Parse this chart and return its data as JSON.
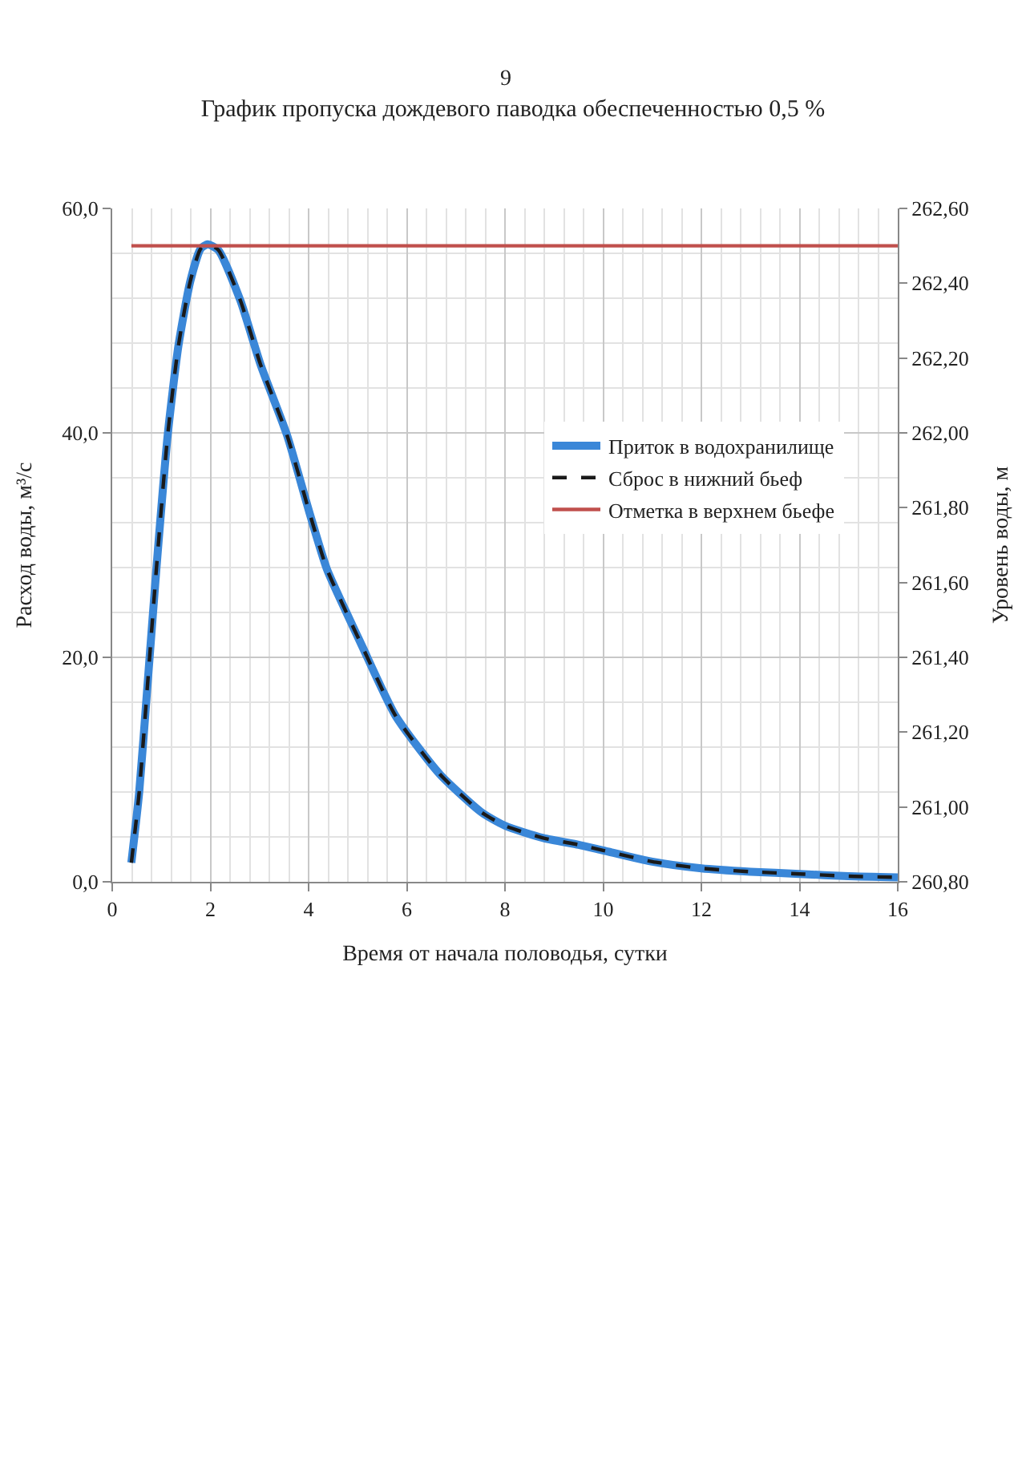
{
  "chart_data": {
    "type": "line",
    "title": "График пропуска дождевого паводка обеспеченностью 0,5 %",
    "xlabel": "Время от начала половодья, сутки",
    "ylabel": "Расход воды, м³/с",
    "y2label": "Уровень воды, м",
    "annotations": [
      "9"
    ],
    "x": [
      0.39,
      0.55,
      0.72,
      0.9,
      1.13,
      1.35,
      1.59,
      1.8,
      1.94,
      2.16,
      2.61,
      3.02,
      3.56,
      4.01,
      4.37,
      4.78,
      5.09,
      5.77,
      6.67,
      7.52,
      8.0,
      8.78,
      9.5,
      10.0,
      11.0,
      12.0,
      13.0,
      14.0,
      15.0,
      16.0
    ],
    "series": [
      {
        "name": "Приток в водохранилище",
        "color": "#3a87d8",
        "line_style": "solid",
        "values": [
          1.7,
          8.0,
          17.6,
          27.9,
          39.8,
          47.8,
          53.5,
          56.4,
          56.8,
          56.3,
          51.8,
          46.1,
          39.8,
          33.0,
          27.9,
          23.9,
          21.0,
          14.8,
          9.6,
          6.2,
          5.0,
          3.9,
          3.3,
          2.8,
          1.8,
          1.2,
          0.9,
          0.7,
          0.5,
          0.4
        ]
      },
      {
        "name": "Сброс в нижний бьеф",
        "color": "#1a1a1a",
        "line_style": "dashed",
        "values": [
          1.7,
          8.0,
          17.6,
          27.9,
          39.8,
          47.8,
          53.5,
          56.4,
          56.8,
          56.3,
          51.8,
          46.1,
          39.8,
          33.0,
          27.9,
          23.9,
          21.0,
          14.8,
          9.6,
          6.2,
          5.0,
          3.9,
          3.3,
          2.8,
          1.8,
          1.2,
          0.9,
          0.7,
          0.5,
          0.4
        ]
      },
      {
        "name": "Отметка в верхнем бьефе",
        "color": "#c0504d",
        "line_style": "solid",
        "axis": "y2",
        "x": [
          0.39,
          16.0
        ],
        "values": [
          262.5,
          262.5
        ]
      }
    ],
    "xlim": [
      0,
      16
    ],
    "xticks": [
      0,
      2,
      4,
      6,
      8,
      10,
      12,
      14,
      16
    ],
    "ylim": [
      0,
      60
    ],
    "yticks": [
      {
        "value": 0,
        "label": "0,0"
      },
      {
        "value": 20,
        "label": "20,0"
      },
      {
        "value": 40,
        "label": "40,0"
      },
      {
        "value": 60,
        "label": "60,0"
      }
    ],
    "y2lim": [
      260.8,
      262.6
    ],
    "y2ticks": [
      {
        "value": 260.8,
        "label": "260,80"
      },
      {
        "value": 261.0,
        "label": "261,00"
      },
      {
        "value": 261.2,
        "label": "261,20"
      },
      {
        "value": 261.4,
        "label": "261,40"
      },
      {
        "value": 261.6,
        "label": "261,60"
      },
      {
        "value": 261.8,
        "label": "261,80"
      },
      {
        "value": 262.0,
        "label": "262,00"
      },
      {
        "value": 262.2,
        "label": "262,20"
      },
      {
        "value": 262.4,
        "label": "262,40"
      },
      {
        "value": 262.6,
        "label": "262,60"
      }
    ],
    "grid": true,
    "legend": "right"
  }
}
